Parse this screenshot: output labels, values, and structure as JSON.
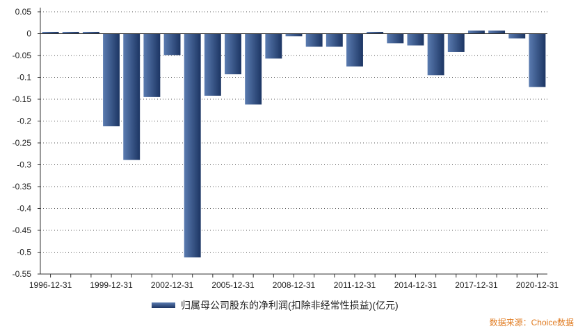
{
  "chart_data": {
    "type": "bar",
    "categories": [
      "1996-12-31",
      "1997-12-31",
      "1998-12-31",
      "1999-12-31",
      "2000-12-31",
      "2001-12-31",
      "2002-12-31",
      "2003-12-31",
      "2004-12-31",
      "2005-12-31",
      "2006-12-31",
      "2007-12-31",
      "2008-12-31",
      "2009-12-31",
      "2010-12-31",
      "2011-12-31",
      "2012-12-31",
      "2013-12-31",
      "2014-12-31",
      "2015-12-31",
      "2016-12-31",
      "2017-12-31",
      "2018-12-31",
      "2019-12-31",
      "2020-12-31"
    ],
    "x_tick_labels": [
      "1996-12-31",
      "1999-12-31",
      "2002-12-31",
      "2005-12-31",
      "2008-12-31",
      "2011-12-31",
      "2014-12-31",
      "2017-12-31",
      "2020-12-31"
    ],
    "series": [
      {
        "name": "归属母公司股东的净利润(扣除非经常性损益)(亿元)",
        "values": [
          0.004,
          0.004,
          0.004,
          -0.212,
          -0.289,
          -0.145,
          -0.049,
          -0.512,
          -0.142,
          -0.093,
          -0.162,
          -0.057,
          -0.006,
          -0.03,
          -0.03,
          -0.075,
          0.004,
          -0.022,
          -0.027,
          -0.095,
          -0.042,
          0.007,
          0.007,
          -0.011,
          -0.122
        ]
      }
    ],
    "ylim": [
      -0.55,
      0.05
    ],
    "y_ticks": [
      0.05,
      0,
      -0.05,
      -0.1,
      -0.15,
      -0.2,
      -0.25,
      -0.3,
      -0.35,
      -0.4,
      -0.45,
      -0.5,
      -0.55
    ],
    "y_tick_labels": [
      "0.05",
      "0",
      "-0.05",
      "-0.1",
      "-0.15",
      "-0.2",
      "-0.25",
      "-0.3",
      "-0.35",
      "-0.4",
      "-0.45",
      "-0.5",
      "-0.55"
    ],
    "grid": true,
    "legend_position": "bottom-center",
    "bar_color_top": "#5a7bb0",
    "bar_color_bottom": "#1c3563"
  },
  "legend_label": "归属母公司股东的净利润(扣除非经常性损益)(亿元)",
  "source_label": "数据来源：Choice数据"
}
